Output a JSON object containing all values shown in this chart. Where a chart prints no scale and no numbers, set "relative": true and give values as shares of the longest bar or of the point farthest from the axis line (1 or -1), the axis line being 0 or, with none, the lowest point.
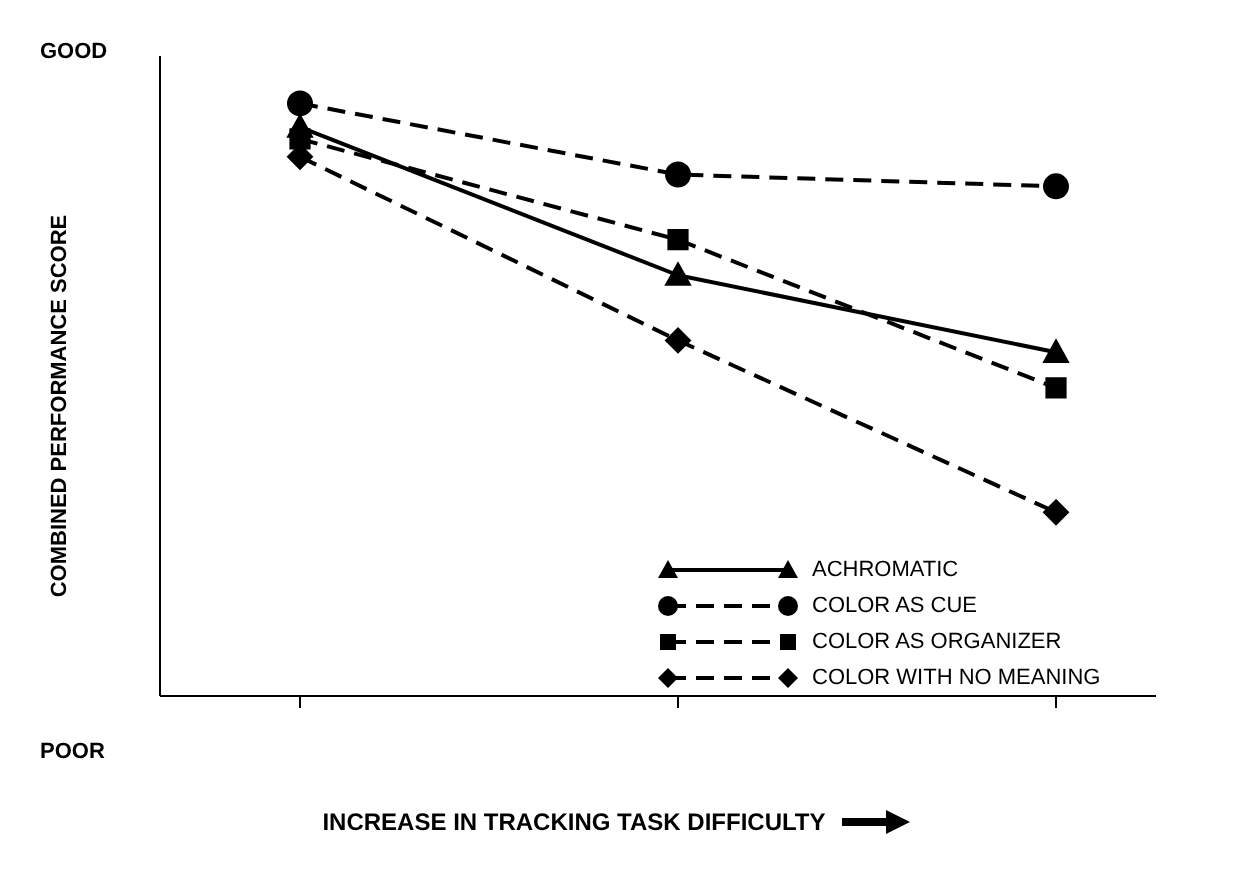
{
  "chart_data": {
    "type": "line",
    "relative": true,
    "ylabel": "COMBINED PERFORMANCE SCORE",
    "xlabel": "INCREASE IN TRACKING TASK DIFFICULTY",
    "annotations": [
      "GOOD",
      "POOR"
    ],
    "categories": [
      null,
      null,
      null
    ],
    "legend": "bottom right",
    "grid": false,
    "series": [
      {
        "name": "ACHROMATIC",
        "color": "#000000",
        "marker": "triangle",
        "line_style": "solid",
        "values": [
          0.96,
          0.71,
          0.58
        ]
      },
      {
        "name": "COLOR AS CUE",
        "color": "#000000",
        "marker": "circle",
        "line_style": "dashed",
        "values": [
          1,
          0.88,
          0.86
        ]
      },
      {
        "name": "COLOR AS ORGANIZER",
        "color": "#000000",
        "marker": "square",
        "line_style": "dashed",
        "values": [
          0.94,
          0.77,
          0.52
        ]
      },
      {
        "name": "COLOR WITH NO MEANING",
        "color": "#000000",
        "marker": "diamond",
        "line_style": "dashed",
        "values": [
          0.91,
          0.6,
          0.31
        ]
      }
    ]
  }
}
